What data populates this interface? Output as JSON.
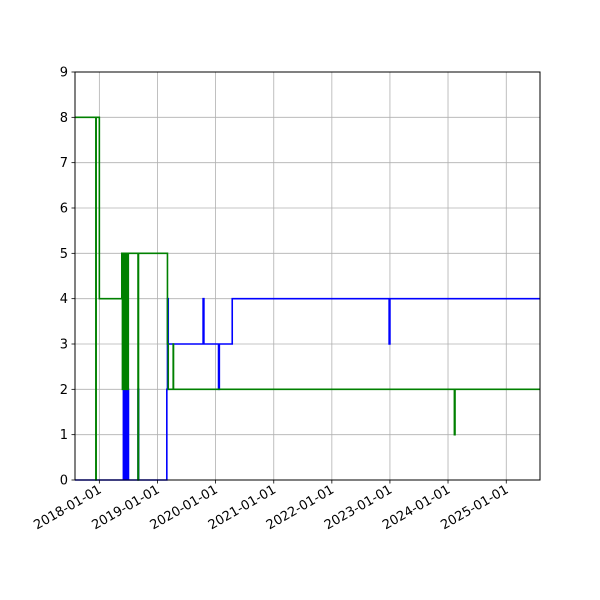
{
  "chart_data": {
    "type": "line",
    "step": "post",
    "grid": true,
    "title": "",
    "xlabel": "",
    "ylabel": "",
    "xlim": [
      "2017-08-01",
      "2025-08-01"
    ],
    "ylim": [
      0,
      9
    ],
    "y_ticks": [
      "0",
      "1",
      "2",
      "3",
      "4",
      "5",
      "6",
      "7",
      "8",
      "9"
    ],
    "x_ticks": [
      "2018-01-01",
      "2019-01-01",
      "2020-01-01",
      "2021-01-01",
      "2022-01-01",
      "2023-01-01",
      "2024-01-01",
      "2025-01-01"
    ],
    "series": [
      {
        "color": "#0000ff",
        "x": [
          "2017-08-01",
          "2018-06-01",
          "2018-06-08",
          "2018-06-14",
          "2018-06-20",
          "2018-06-26",
          "2018-07-03",
          "2018-09-01",
          "2018-09-05",
          "2019-03-01",
          "2019-03-05",
          "2019-03-10",
          "2019-10-15",
          "2019-10-20",
          "2020-01-20",
          "2020-01-25",
          "2020-04-15",
          "2022-12-27",
          "2023-01-01",
          "2025-08-01"
        ],
        "y": [
          0,
          2,
          0,
          2,
          0,
          2,
          0,
          2,
          0,
          2,
          4,
          3,
          4,
          3,
          2,
          3,
          4,
          3,
          4,
          4
        ]
      },
      {
        "color": "#008000",
        "x": [
          "2017-08-01",
          "2017-12-10",
          "2017-12-12",
          "2018-01-01",
          "2018-05-22",
          "2018-05-26",
          "2018-06-03",
          "2018-06-07",
          "2018-06-12",
          "2018-06-16",
          "2018-06-22",
          "2018-06-28",
          "2018-07-02",
          "2018-09-01",
          "2018-09-04",
          "2018-09-08",
          "2019-03-05",
          "2019-03-10",
          "2019-04-10",
          "2019-04-12",
          "2024-02-10",
          "2024-02-14",
          "2025-08-01"
        ],
        "y": [
          8,
          0,
          8,
          4,
          5,
          2,
          5,
          2,
          5,
          2,
          5,
          2,
          5,
          0,
          5,
          5,
          3,
          2,
          3,
          2,
          1,
          2,
          2
        ]
      }
    ]
  }
}
